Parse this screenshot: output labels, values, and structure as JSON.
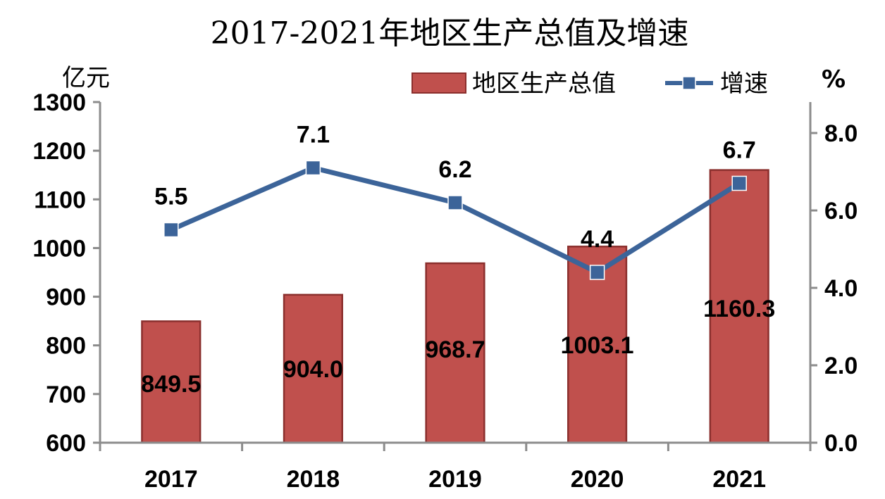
{
  "chart_data": {
    "type": "bar+line",
    "title": "2017-2021年地区生产总值及增速",
    "categories": [
      "2017",
      "2018",
      "2019",
      "2020",
      "2021"
    ],
    "series": [
      {
        "name": "地区生产总值",
        "type": "bar",
        "axis": "left",
        "values": [
          849.5,
          904.0,
          968.7,
          1003.1,
          1160.3
        ],
        "color": "#c0504d",
        "border": "#8b2f2d"
      },
      {
        "name": "增速",
        "type": "line",
        "axis": "right",
        "values": [
          5.5,
          7.1,
          6.2,
          4.4,
          6.7
        ],
        "color": "#3c6499"
      }
    ],
    "bar_labels": [
      "849.5",
      "904.0",
      "968.7",
      "1003.1",
      "1160.3"
    ],
    "line_labels": [
      "5.5",
      "7.1",
      "6.2",
      "4.4",
      "6.7"
    ],
    "left_axis": {
      "unit": "亿元",
      "ylim": [
        600,
        1300
      ],
      "ticks": [
        600,
        700,
        800,
        900,
        1000,
        1100,
        1200,
        1300
      ]
    },
    "right_axis": {
      "unit": "%",
      "ylim": [
        0,
        8.8
      ],
      "ticks": [
        0.0,
        2.0,
        4.0,
        6.0,
        8.0
      ],
      "tick_labels": [
        "0.0",
        "2.0",
        "4.0",
        "6.0",
        "8.0"
      ]
    },
    "legend": {
      "placement": "top-right",
      "entries": [
        "地区生产总值",
        "增速"
      ]
    },
    "grid": false
  }
}
